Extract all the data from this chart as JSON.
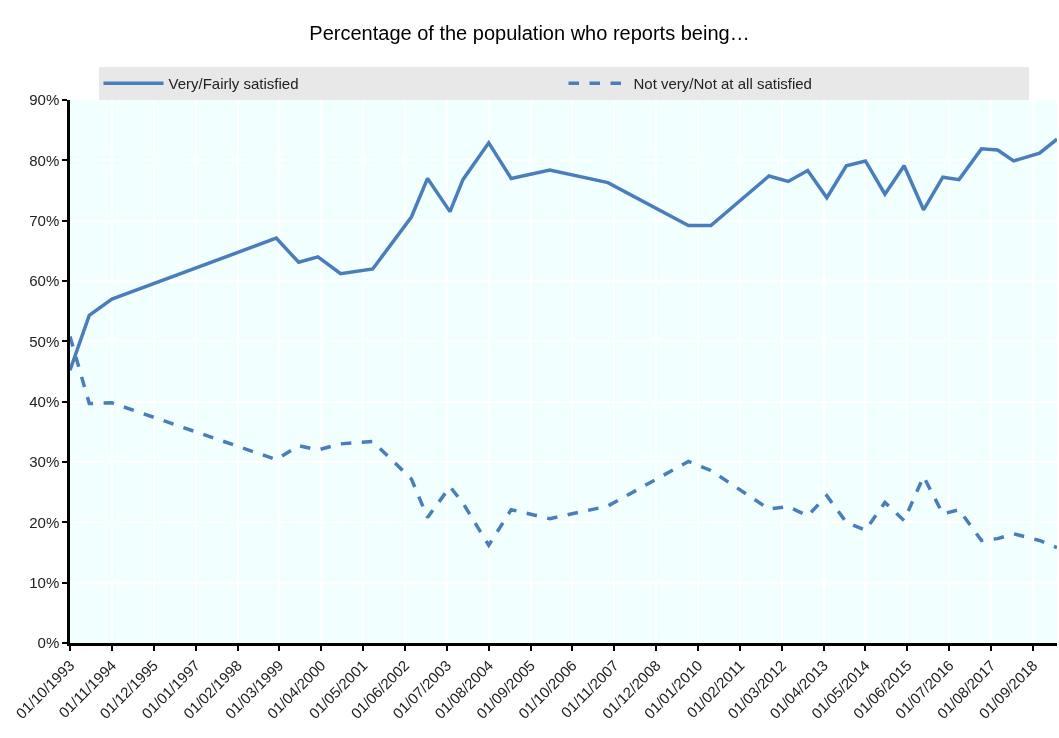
{
  "chart_data": {
    "type": "line",
    "title": "Percentage of the population who reports being…",
    "x": [
      "1993-10",
      "1994-04",
      "1994-11",
      "1999-02",
      "1999-09",
      "2000-03",
      "2000-10",
      "2001-08",
      "2002-08",
      "2003-01",
      "2003-08",
      "2003-12",
      "2004-08",
      "2005-03",
      "2006-03",
      "2007-09",
      "2009-10",
      "2010-05",
      "2011-11",
      "2012-05",
      "2012-11",
      "2013-05",
      "2013-11",
      "2014-05",
      "2014-11",
      "2015-05",
      "2015-11",
      "2016-05",
      "2016-10",
      "2017-05",
      "2017-10",
      "2018-03",
      "2018-11",
      "2019-04-15"
    ],
    "series": [
      {
        "name": "Very/Fairly satisfied",
        "color": "#4a7ebb",
        "line_style": "solid",
        "values": [
          45.2,
          54.3,
          57.0,
          67.1,
          63.1,
          64.0,
          61.2,
          62.0,
          70.6,
          77.0,
          71.5,
          76.8,
          82.9,
          77.0,
          78.4,
          76.3,
          69.2,
          69.2,
          77.4,
          76.5,
          78.3,
          73.8,
          79.1,
          79.9,
          74.4,
          79.1,
          71.8,
          77.2,
          76.8,
          81.9,
          81.7,
          79.9,
          81.2,
          83.5
        ]
      },
      {
        "name": "Not very/Not at all satisfied",
        "color": "#4a7ebb",
        "line_style": "dashed",
        "values": [
          50.8,
          39.7,
          39.8,
          30.4,
          32.7,
          32.0,
          33.0,
          33.4,
          27.2,
          20.8,
          25.9,
          23.2,
          16.2,
          22.1,
          20.6,
          22.7,
          30.1,
          28.6,
          22.2,
          22.6,
          21.1,
          24.4,
          20.0,
          18.7,
          23.3,
          20.3,
          27.6,
          21.4,
          22.1,
          17.0,
          17.3,
          18.1,
          17.0,
          15.8
        ]
      }
    ],
    "xlim": [
      "1993-10",
      "2019-04-15"
    ],
    "xticks": [
      {
        "value": "1993-10",
        "label": "01/10/1993"
      },
      {
        "value": "1994-11",
        "label": "01/11/1994"
      },
      {
        "value": "1995-12",
        "label": "01/12/1995"
      },
      {
        "value": "1997-01",
        "label": "01/01/1997"
      },
      {
        "value": "1998-02",
        "label": "01/02/1998"
      },
      {
        "value": "1999-03",
        "label": "01/03/1999"
      },
      {
        "value": "2000-04",
        "label": "01/04/2000"
      },
      {
        "value": "2001-05",
        "label": "01/05/2001"
      },
      {
        "value": "2002-06",
        "label": "01/06/2002"
      },
      {
        "value": "2003-07",
        "label": "01/07/2003"
      },
      {
        "value": "2004-08",
        "label": "01/08/2004"
      },
      {
        "value": "2005-09",
        "label": "01/09/2005"
      },
      {
        "value": "2006-10",
        "label": "01/10/2006"
      },
      {
        "value": "2007-11",
        "label": "01/11/2007"
      },
      {
        "value": "2008-12",
        "label": "01/12/2008"
      },
      {
        "value": "2010-01",
        "label": "01/01/2010"
      },
      {
        "value": "2011-02",
        "label": "01/02/2011"
      },
      {
        "value": "2012-03",
        "label": "01/03/2012"
      },
      {
        "value": "2013-04",
        "label": "01/04/2013"
      },
      {
        "value": "2014-05",
        "label": "01/05/2014"
      },
      {
        "value": "2015-06",
        "label": "01/06/2015"
      },
      {
        "value": "2016-07",
        "label": "01/07/2016"
      },
      {
        "value": "2017-08",
        "label": "01/08/2017"
      },
      {
        "value": "2018-09",
        "label": "01/09/2018"
      }
    ],
    "ylim": [
      0,
      90
    ],
    "yticks": [
      {
        "value": 0,
        "label": "0%"
      },
      {
        "value": 10,
        "label": "10%"
      },
      {
        "value": 20,
        "label": "20%"
      },
      {
        "value": 30,
        "label": "30%"
      },
      {
        "value": 40,
        "label": "40%"
      },
      {
        "value": 50,
        "label": "50%"
      },
      {
        "value": 60,
        "label": "60%"
      },
      {
        "value": 70,
        "label": "70%"
      },
      {
        "value": 80,
        "label": "80%"
      },
      {
        "value": 90,
        "label": "90%"
      }
    ],
    "grid": true,
    "legend": "top"
  }
}
